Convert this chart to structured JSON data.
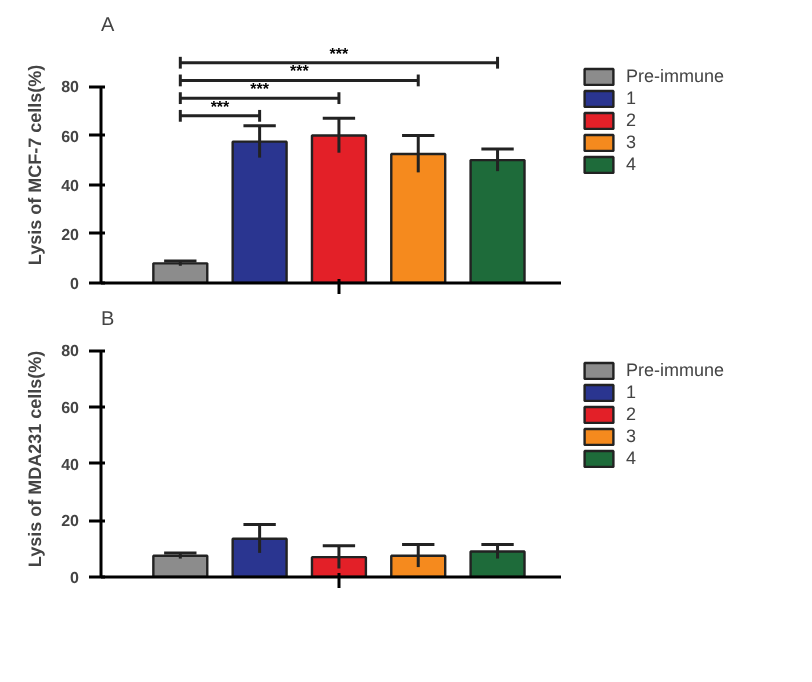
{
  "chart_data": [
    {
      "type": "bar",
      "title": "A",
      "ylabel": "Lysis of MCF-7 cells(%)",
      "categories": [
        null
      ],
      "ylim": [
        0,
        80
      ],
      "yticks": [
        0,
        20,
        40,
        60,
        80
      ],
      "grid": false,
      "legend": "top right",
      "tick_labels": "y",
      "annotations": [
        "***",
        "***",
        "***",
        "***"
      ],
      "series": [
        {
          "name": "Pre-immune",
          "color": "#8c8c8c",
          "values": [
            8
          ],
          "errors": [
            1
          ]
        },
        {
          "name": "1",
          "color": "#2a3590",
          "values": [
            57.5
          ],
          "errors": [
            6.5
          ]
        },
        {
          "name": "2",
          "color": "#e32028",
          "values": [
            60
          ],
          "errors": [
            7
          ]
        },
        {
          "name": "3",
          "color": "#f58a1e",
          "values": [
            52.5
          ],
          "errors": [
            7.5
          ]
        },
        {
          "name": "4",
          "color": "#1e6b3a",
          "values": [
            50
          ],
          "errors": [
            4.5
          ]
        }
      ]
    },
    {
      "type": "bar",
      "title": "B",
      "ylabel": "Lysis of MDA231 cells(%)",
      "categories": [
        null
      ],
      "ylim": [
        0,
        80
      ],
      "yticks": [
        0,
        20,
        40,
        60,
        80
      ],
      "grid": false,
      "legend": "top right",
      "tick_labels": "y",
      "series": [
        {
          "name": "Pre-immune",
          "color": "#8c8c8c",
          "values": [
            7.5
          ],
          "errors": [
            1
          ]
        },
        {
          "name": "1",
          "color": "#2a3590",
          "values": [
            13.5
          ],
          "errors": [
            5
          ]
        },
        {
          "name": "2",
          "color": "#e32028",
          "values": [
            7
          ],
          "errors": [
            4
          ]
        },
        {
          "name": "3",
          "color": "#f58a1e",
          "values": [
            7.5
          ],
          "errors": [
            4
          ]
        },
        {
          "name": "4",
          "color": "#1e6b3a",
          "values": [
            9
          ],
          "errors": [
            2.5
          ]
        }
      ]
    }
  ]
}
